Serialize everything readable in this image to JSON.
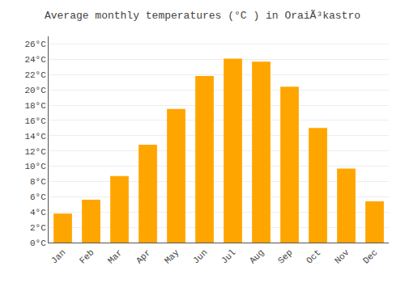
{
  "chart_data": {
    "type": "bar",
    "title": "Average monthly temperatures (°C ) in OraiÃ³kastro",
    "categories": [
      "Jan",
      "Feb",
      "Mar",
      "Apr",
      "May",
      "Jun",
      "Jul",
      "Aug",
      "Sep",
      "Oct",
      "Nov",
      "Dec"
    ],
    "values": [
      3.8,
      5.6,
      8.7,
      12.8,
      17.5,
      21.8,
      24.1,
      23.7,
      20.4,
      15.0,
      9.7,
      5.4
    ],
    "color": "#FFA500",
    "ylim": [
      0,
      27
    ],
    "yticks": [
      {
        "value": 0,
        "label": "0°C"
      },
      {
        "value": 2,
        "label": "2°C"
      },
      {
        "value": 4,
        "label": "4°C"
      },
      {
        "value": 6,
        "label": "6°C"
      },
      {
        "value": 8,
        "label": "8°C"
      },
      {
        "value": 10,
        "label": "10°C"
      },
      {
        "value": 12,
        "label": "12°C"
      },
      {
        "value": 14,
        "label": "14°C"
      },
      {
        "value": 16,
        "label": "16°C"
      },
      {
        "value": 18,
        "label": "18°C"
      },
      {
        "value": 20,
        "label": "20°C"
      },
      {
        "value": 22,
        "label": "22°C"
      },
      {
        "value": 24,
        "label": "24°C"
      },
      {
        "value": 26,
        "label": "26°C"
      }
    ],
    "grid": true
  }
}
